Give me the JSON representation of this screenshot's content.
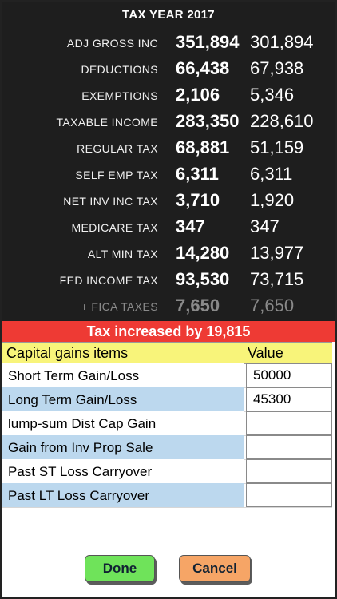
{
  "summary": {
    "title": "TAX YEAR 2017",
    "rows": [
      {
        "label": "ADJ GROSS INC",
        "new": "351,894",
        "old": "301,894"
      },
      {
        "label": "DEDUCTIONS",
        "new": "66,438",
        "old": "67,938"
      },
      {
        "label": "EXEMPTIONS",
        "new": "2,106",
        "old": "5,346"
      },
      {
        "label": "TAXABLE INCOME",
        "new": "283,350",
        "old": "228,610"
      },
      {
        "label": "REGULAR TAX",
        "new": "68,881",
        "old": "51,159"
      },
      {
        "label": "SELF EMP TAX",
        "new": "6,311",
        "old": "6,311"
      },
      {
        "label": "NET INV INC TAX",
        "new": "3,710",
        "old": "1,920"
      },
      {
        "label": "MEDICARE TAX",
        "new": "347",
        "old": "347"
      },
      {
        "label": "ALT MIN TAX",
        "new": "14,280",
        "old": "13,977"
      },
      {
        "label": "FED INCOME TAX",
        "new": "93,530",
        "old": "73,715"
      },
      {
        "label": "+  FICA TAXES",
        "new": "7,650",
        "old": "7,650"
      }
    ]
  },
  "banner": {
    "text": "Tax increased by 19,815"
  },
  "table": {
    "header_item": "Capital gains items",
    "header_value": "Value",
    "rows": [
      {
        "label": "Short Term Gain/Loss",
        "value": "50000"
      },
      {
        "label": "Long Term Gain/Loss",
        "value": "45300"
      },
      {
        "label": "lump-sum Dist Cap Gain",
        "value": ""
      },
      {
        "label": "Gain from Inv Prop Sale",
        "value": ""
      },
      {
        "label": "Past ST Loss Carryover",
        "value": ""
      },
      {
        "label": "Past LT Loss Carryover",
        "value": ""
      }
    ]
  },
  "buttons": {
    "done": "Done",
    "cancel": "Cancel"
  }
}
